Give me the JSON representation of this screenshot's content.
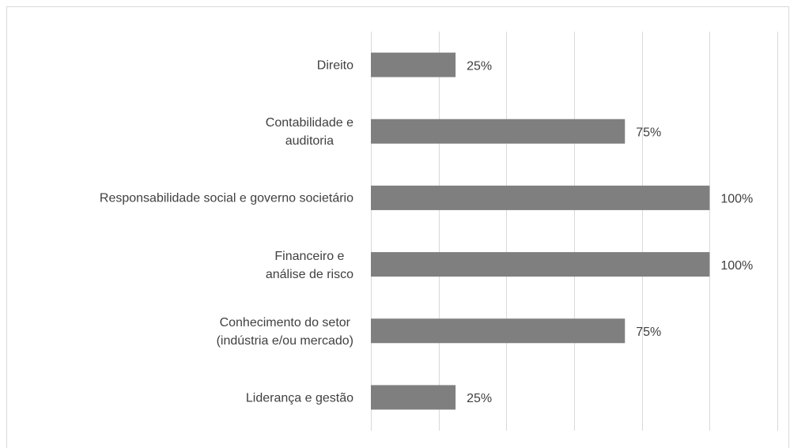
{
  "chart_data": {
    "type": "barh",
    "categories": [
      "Direito",
      "Contabilidade e\nauditoria",
      "Responsabilidade social e governo societário",
      "Financeiro e\nanálise de risco",
      "Conhecimento do setor\n(indústria e/ou mercado)",
      "Liderança e gestão"
    ],
    "values": [
      25,
      75,
      100,
      100,
      75,
      25
    ],
    "value_labels": [
      "25%",
      "75%",
      "100%",
      "100%",
      "75%",
      "25%"
    ],
    "color": "#7f7f7f",
    "xlim": [
      0,
      120
    ],
    "xticks": [
      0,
      20,
      40,
      60,
      80,
      100,
      120
    ],
    "grid": true
  }
}
